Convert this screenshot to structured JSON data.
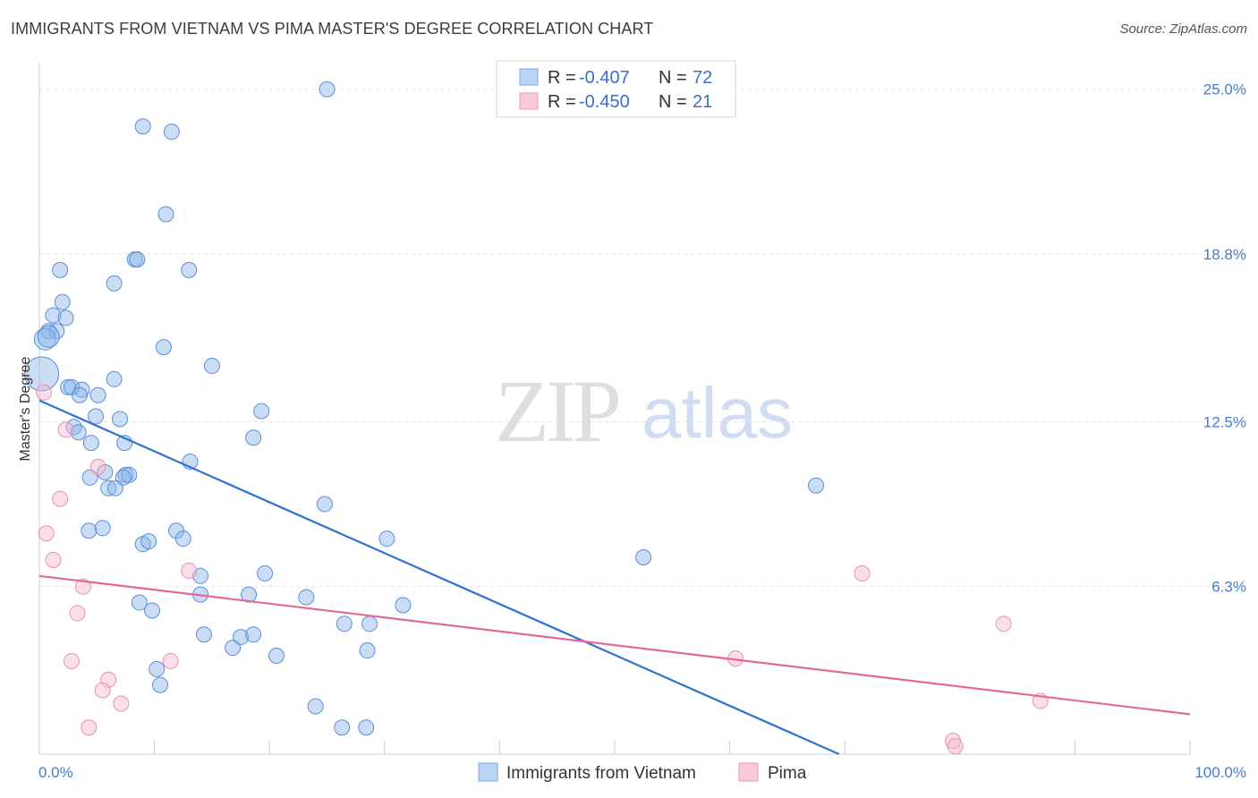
{
  "chart_data": {
    "type": "scatter",
    "title": "IMMIGRANTS FROM VIETNAM VS PIMA MASTER'S DEGREE CORRELATION CHART",
    "source": "Source: ZipAtlas.com",
    "xlabel": "",
    "ylabel": "Master's Degree",
    "xlim": [
      0,
      100
    ],
    "ylim": [
      0,
      26
    ],
    "x_tick_labels": [
      "0.0%",
      "100.0%"
    ],
    "y_ticks": [
      {
        "value": 25.0,
        "label": "25.0%"
      },
      {
        "value": 18.8,
        "label": "18.8%"
      },
      {
        "value": 12.5,
        "label": "12.5%"
      },
      {
        "value": 6.3,
        "label": "6.3%"
      }
    ],
    "watermark": {
      "part1": "ZIP",
      "part2": "atlas"
    },
    "legend": {
      "entries": [
        {
          "r_label": "R =",
          "r_value": "-0.407",
          "n_label": "N =",
          "n_value": "72"
        },
        {
          "r_label": "R =",
          "r_value": "-0.450",
          "n_label": "N =",
          "n_value": "21"
        }
      ]
    },
    "series": [
      {
        "name": "Immigrants from Vietnam",
        "color": "#8ab4e8",
        "stroke": "#5b8fd6",
        "line_color": "#2f72d0",
        "trend": {
          "x0": 0,
          "y0": 13.3,
          "x1": 69.5,
          "y1": 0
        },
        "points": [
          [
            25,
            25.0
          ],
          [
            9,
            23.6
          ],
          [
            11.5,
            23.4
          ],
          [
            11,
            20.3
          ],
          [
            8.3,
            18.6
          ],
          [
            8.5,
            18.6
          ],
          [
            1.8,
            18.2
          ],
          [
            13,
            18.2
          ],
          [
            6.5,
            17.7
          ],
          [
            2,
            17.0
          ],
          [
            1.2,
            16.5
          ],
          [
            2.3,
            16.4
          ],
          [
            0.8,
            15.9
          ],
          [
            1.5,
            15.9
          ],
          [
            0.5,
            15.6
          ],
          [
            0.8,
            15.7
          ],
          [
            10.8,
            15.3
          ],
          [
            0.2,
            14.3
          ],
          [
            15,
            14.6
          ],
          [
            6.5,
            14.1
          ],
          [
            2.5,
            13.8
          ],
          [
            2.8,
            13.8
          ],
          [
            3.7,
            13.7
          ],
          [
            3.5,
            13.5
          ],
          [
            5.1,
            13.5
          ],
          [
            19.3,
            12.9
          ],
          [
            4.9,
            12.7
          ],
          [
            7,
            12.6
          ],
          [
            3,
            12.3
          ],
          [
            3.4,
            12.1
          ],
          [
            18.6,
            11.9
          ],
          [
            4.5,
            11.7
          ],
          [
            7.4,
            11.7
          ],
          [
            13.1,
            11.0
          ],
          [
            4.4,
            10.4
          ],
          [
            5.7,
            10.6
          ],
          [
            7.5,
            10.5
          ],
          [
            7.8,
            10.5
          ],
          [
            7.3,
            10.4
          ],
          [
            6,
            10.0
          ],
          [
            6.6,
            10.0
          ],
          [
            67.5,
            10.1
          ],
          [
            24.8,
            9.4
          ],
          [
            5.5,
            8.5
          ],
          [
            4.3,
            8.4
          ],
          [
            11.9,
            8.4
          ],
          [
            12.5,
            8.1
          ],
          [
            30.2,
            8.1
          ],
          [
            9,
            7.9
          ],
          [
            9.5,
            8.0
          ],
          [
            52.5,
            7.4
          ],
          [
            14,
            6.7
          ],
          [
            19.6,
            6.8
          ],
          [
            14,
            6.0
          ],
          [
            18.2,
            6.0
          ],
          [
            23.2,
            5.9
          ],
          [
            8.7,
            5.7
          ],
          [
            9.8,
            5.4
          ],
          [
            31.6,
            5.6
          ],
          [
            26.5,
            4.9
          ],
          [
            28.7,
            4.9
          ],
          [
            14.3,
            4.5
          ],
          [
            17.5,
            4.4
          ],
          [
            18.6,
            4.5
          ],
          [
            16.8,
            4.0
          ],
          [
            20.6,
            3.7
          ],
          [
            28.5,
            3.9
          ],
          [
            10.2,
            3.2
          ],
          [
            10.5,
            2.6
          ],
          [
            24,
            1.8
          ],
          [
            26.3,
            1.0
          ],
          [
            28.4,
            1.0
          ]
        ]
      },
      {
        "name": "Pima",
        "color": "#f7b8cb",
        "stroke": "#ec8fab",
        "line_color": "#e3689a",
        "trend": {
          "x0": 0,
          "y0": 6.7,
          "x1": 100,
          "y1": 1.5
        },
        "points": [
          [
            0.4,
            13.6
          ],
          [
            2.3,
            12.2
          ],
          [
            5.1,
            10.8
          ],
          [
            1.8,
            9.6
          ],
          [
            0.6,
            8.3
          ],
          [
            1.2,
            7.3
          ],
          [
            13,
            6.9
          ],
          [
            3.8,
            6.3
          ],
          [
            3.3,
            5.3
          ],
          [
            71.5,
            6.8
          ],
          [
            83.8,
            4.9
          ],
          [
            2.8,
            3.5
          ],
          [
            11.4,
            3.5
          ],
          [
            60.5,
            3.6
          ],
          [
            6,
            2.8
          ],
          [
            5.5,
            2.4
          ],
          [
            7.1,
            1.9
          ],
          [
            87,
            2.0
          ],
          [
            4.3,
            1.0
          ],
          [
            79.4,
            0.5
          ],
          [
            79.6,
            0.3
          ]
        ]
      }
    ]
  }
}
